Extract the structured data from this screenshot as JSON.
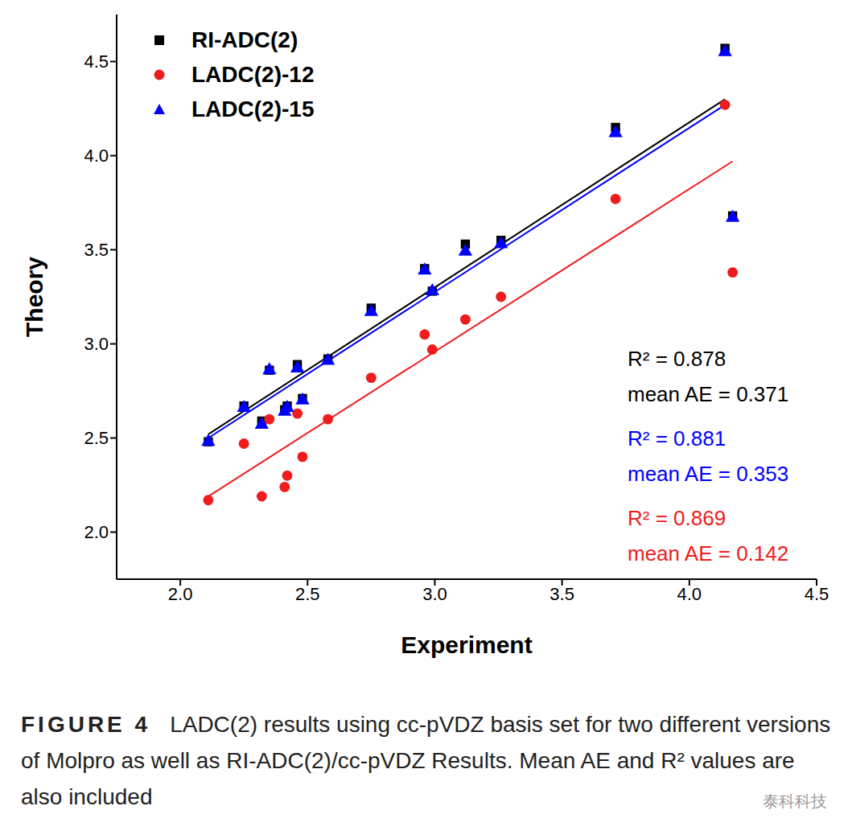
{
  "chart_data": {
    "type": "scatter",
    "x_label": "Experiment",
    "y_label": "Theory",
    "xlim": [
      1.75,
      4.5
    ],
    "ylim": [
      1.75,
      4.75
    ],
    "xticks": [
      {
        "value": 2,
        "label": "2.0"
      },
      {
        "value": 2.5,
        "label": "2.5"
      },
      {
        "value": 3,
        "label": "3.0"
      },
      {
        "value": 3.5,
        "label": "3.5"
      },
      {
        "value": 4,
        "label": "4.0"
      },
      {
        "value": 4.5,
        "label": "4.5"
      }
    ],
    "yticks": [
      {
        "value": 2,
        "label": "2.0"
      },
      {
        "value": 2.5,
        "label": "2.5"
      },
      {
        "value": 3,
        "label": "3.0"
      },
      {
        "value": 3.5,
        "label": "3.5"
      },
      {
        "value": 4,
        "label": "4.0"
      },
      {
        "value": 4.5,
        "label": "4.5"
      }
    ],
    "legend": "upper left",
    "x": [
      2.11,
      2.25,
      2.32,
      2.35,
      2.41,
      2.42,
      2.46,
      2.48,
      2.58,
      2.75,
      2.96,
      2.99,
      3.12,
      3.26,
      3.71,
      4.14,
      4.17
    ],
    "series": [
      {
        "name": "RI-ADC(2)",
        "color": "#000000",
        "marker": "square",
        "values": [
          2.48,
          2.67,
          2.59,
          2.86,
          2.65,
          2.67,
          2.89,
          2.71,
          2.92,
          3.19,
          3.4,
          3.28,
          3.53,
          3.55,
          4.15,
          4.57,
          3.68
        ],
        "trend_line": {
          "x": [
            2.11,
            4.14
          ],
          "y": [
            2.52,
            4.3
          ]
        }
      },
      {
        "name": "LADC(2)-12",
        "color": "#ee1c1c",
        "marker": "circle",
        "values": [
          2.17,
          2.47,
          2.19,
          2.6,
          2.24,
          2.3,
          2.63,
          2.4,
          2.6,
          2.82,
          3.05,
          2.97,
          3.13,
          3.25,
          3.77,
          4.27,
          3.38
        ],
        "trend_line": {
          "x": [
            2.11,
            4.17
          ],
          "y": [
            2.19,
            3.97
          ]
        }
      },
      {
        "name": "LADC(2)-15",
        "color": "#0000ff",
        "marker": "triangle",
        "values": [
          2.48,
          2.66,
          2.57,
          2.86,
          2.64,
          2.66,
          2.87,
          2.7,
          2.91,
          3.17,
          3.39,
          3.28,
          3.49,
          3.53,
          4.12,
          4.55,
          3.67
        ],
        "trend_line": {
          "x": [
            2.11,
            4.14
          ],
          "y": [
            2.5,
            4.27
          ]
        }
      }
    ],
    "annotations": [
      {
        "text": "R² = 0.878",
        "color": "#000000"
      },
      {
        "text": "mean AE = 0.371",
        "color": "#000000"
      },
      {
        "text": "R² = 0.881",
        "color": "#0000ff"
      },
      {
        "text": "mean AE = 0.353",
        "color": "#0000ff"
      },
      {
        "text": "R² = 0.869",
        "color": "#ee1c1c"
      },
      {
        "text": "mean AE = 0.142",
        "color": "#ee1c1c"
      }
    ]
  },
  "caption": {
    "label": "FIGURE 4",
    "text": "LADC(2) results using cc-pVDZ basis set for two different versions of Molpro as well as RI-ADC(2)/cc-pVDZ Results. Mean AE and R² values are also included"
  },
  "watermark": "泰科科技"
}
